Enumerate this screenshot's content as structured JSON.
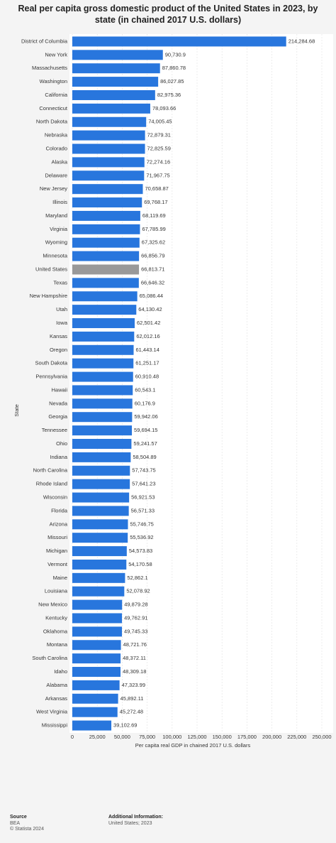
{
  "chart_data": {
    "type": "bar",
    "orientation": "horizontal",
    "title": "Real per capita gross domestic product of the United States in 2023, by state (in chained 2017 U.S. dollars)",
    "xlabel": "Per capita real GDP in chained 2017 U.S. dollars",
    "ylabel": "State",
    "categories": [
      "District of Columbia",
      "New York",
      "Massachusetts",
      "Washington",
      "California",
      "Connecticut",
      "North Dakota",
      "Nebraska",
      "Colorado",
      "Alaska",
      "Delaware",
      "New Jersey",
      "Illinois",
      "Maryland",
      "Virginia",
      "Wyoming",
      "Minnesota",
      "United States",
      "Texas",
      "New Hampshire",
      "Utah",
      "Iowa",
      "Kansas",
      "Oregon",
      "South Dakota",
      "Pennsylvania",
      "Hawaii",
      "Nevada",
      "Georgia",
      "Tennessee",
      "Ohio",
      "Indiana",
      "North Carolina",
      "Rhode Island",
      "Wisconsin",
      "Florida",
      "Arizona",
      "Missouri",
      "Michigan",
      "Vermont",
      "Maine",
      "Louisiana",
      "New Mexico",
      "Kentucky",
      "Oklahoma",
      "Montana",
      "South Carolina",
      "Idaho",
      "Alabama",
      "Arkansas",
      "West Virginia",
      "Mississippi"
    ],
    "values": [
      214284.68,
      90730.9,
      87860.78,
      86027.85,
      82975.36,
      78093.66,
      74005.45,
      72879.31,
      72825.59,
      72274.16,
      71967.75,
      70658.87,
      69768.17,
      68119.69,
      67785.99,
      67325.62,
      66856.79,
      66813.71,
      66646.32,
      65086.44,
      64130.42,
      62501.42,
      62012.16,
      61443.14,
      61251.17,
      60910.48,
      60543.1,
      60176.9,
      59942.06,
      59694.15,
      59241.57,
      58504.89,
      57743.75,
      57641.23,
      56921.53,
      56571.33,
      55746.75,
      55536.92,
      54573.83,
      54170.58,
      52862.1,
      52078.92,
      49879.28,
      49762.91,
      49745.33,
      48721.76,
      48372.11,
      48309.18,
      47323.99,
      45892.11,
      45272.48,
      39102.69
    ],
    "value_labels": [
      "214,284.68",
      "90,730.9",
      "87,860.78",
      "86,027.85",
      "82,975.36",
      "78,093.66",
      "74,005.45",
      "72,879.31",
      "72,825.59",
      "72,274.16",
      "71,967.75",
      "70,658.87",
      "69,768.17",
      "68,119.69",
      "67,785.99",
      "67,325.62",
      "66,856.79",
      "66,813.71",
      "66,646.32",
      "65,086.44",
      "64,130.42",
      "62,501.42",
      "62,012.16",
      "61,443.14",
      "61,251.17",
      "60,910.48",
      "60,543.1",
      "60,176.9",
      "59,942.06",
      "59,694.15",
      "59,241.57",
      "58,504.89",
      "57,743.75",
      "57,641.23",
      "56,921.53",
      "56,571.33",
      "55,746.75",
      "55,536.92",
      "54,573.83",
      "54,170.58",
      "52,862.1",
      "52,078.92",
      "49,879.28",
      "49,762.91",
      "49,745.33",
      "48,721.76",
      "48,372.11",
      "48,309.18",
      "47,323.99",
      "45,892.11",
      "45,272.48",
      "39,102.69"
    ],
    "colors": [
      "#2876dd",
      "#2876dd",
      "#2876dd",
      "#2876dd",
      "#2876dd",
      "#2876dd",
      "#2876dd",
      "#2876dd",
      "#2876dd",
      "#2876dd",
      "#2876dd",
      "#2876dd",
      "#2876dd",
      "#2876dd",
      "#2876dd",
      "#2876dd",
      "#2876dd",
      "#999999",
      "#2876dd",
      "#2876dd",
      "#2876dd",
      "#2876dd",
      "#2876dd",
      "#2876dd",
      "#2876dd",
      "#2876dd",
      "#2876dd",
      "#2876dd",
      "#2876dd",
      "#2876dd",
      "#2876dd",
      "#2876dd",
      "#2876dd",
      "#2876dd",
      "#2876dd",
      "#2876dd",
      "#2876dd",
      "#2876dd",
      "#2876dd",
      "#2876dd",
      "#2876dd",
      "#2876dd",
      "#2876dd",
      "#2876dd",
      "#2876dd",
      "#2876dd",
      "#2876dd",
      "#2876dd",
      "#2876dd",
      "#2876dd",
      "#2876dd",
      "#2876dd"
    ],
    "xlim": [
      0,
      250000
    ],
    "xticks": [
      0,
      {
        "value": 25000,
        "label": "25,000"
      },
      {
        "value": 50000,
        "label": "50,000"
      },
      {
        "value": 75000,
        "label": "75,000"
      },
      {
        "value": 100000,
        "label": "100,000"
      },
      {
        "value": 125000,
        "label": "125,000"
      },
      {
        "value": 150000,
        "label": "150,000"
      },
      {
        "value": 175000,
        "label": "175,000"
      },
      {
        "value": 200000,
        "label": "200,000"
      },
      {
        "value": 225000,
        "label": "225,000"
      },
      {
        "value": 250000,
        "label": "250,000"
      }
    ],
    "grid": true
  },
  "footer": {
    "source_heading": "Source",
    "source": "BEA",
    "copyright": "© Statista 2024",
    "info_heading": "Additional Information:",
    "info": "United States; 2023"
  }
}
